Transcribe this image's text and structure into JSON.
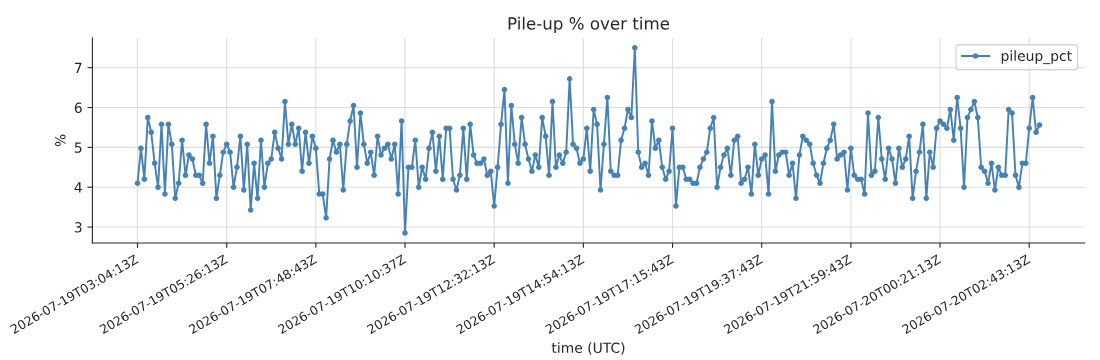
{
  "chart_data": {
    "type": "line",
    "title": "Pile-up % over time",
    "xlabel": "time (UTC)",
    "ylabel": "%",
    "categories": [
      "2026-07-19T03:04:13Z",
      null,
      null,
      null,
      null,
      null,
      null,
      null,
      null,
      null,
      null,
      null,
      null,
      null,
      null,
      null,
      null,
      null,
      null,
      null,
      null,
      null,
      null,
      null,
      null,
      null,
      "2026-07-19T05:26:13Z",
      null,
      null,
      null,
      null,
      null,
      null,
      null,
      null,
      null,
      null,
      null,
      null,
      null,
      null,
      null,
      null,
      null,
      null,
      null,
      null,
      null,
      null,
      null,
      null,
      null,
      "2026-07-19T07:48:43Z",
      null,
      null,
      null,
      null,
      null,
      null,
      null,
      null,
      null,
      null,
      null,
      null,
      null,
      null,
      null,
      null,
      null,
      null,
      null,
      null,
      null,
      null,
      null,
      null,
      null,
      "2026-07-19T10:10:37Z",
      null,
      null,
      null,
      null,
      null,
      null,
      null,
      null,
      null,
      null,
      null,
      null,
      null,
      null,
      null,
      null,
      null,
      null,
      null,
      null,
      null,
      null,
      null,
      null,
      null,
      "2026-07-19T12:32:13Z",
      null,
      null,
      null,
      null,
      null,
      null,
      null,
      null,
      null,
      null,
      null,
      null,
      null,
      null,
      null,
      null,
      null,
      null,
      null,
      null,
      null,
      null,
      null,
      null,
      null,
      "2026-07-19T14:54:13Z",
      null,
      null,
      null,
      null,
      null,
      null,
      null,
      null,
      null,
      null,
      null,
      null,
      null,
      null,
      null,
      null,
      null,
      null,
      null,
      null,
      null,
      null,
      null,
      null,
      null,
      "2026-07-19T17:15:43Z",
      null,
      null,
      null,
      null,
      null,
      null,
      null,
      null,
      null,
      null,
      null,
      null,
      null,
      null,
      null,
      null,
      null,
      null,
      null,
      null,
      null,
      null,
      null,
      null,
      null,
      "2026-07-19T19:37:43Z",
      null,
      null,
      null,
      null,
      null,
      null,
      null,
      null,
      null,
      null,
      null,
      null,
      null,
      null,
      null,
      null,
      null,
      null,
      null,
      null,
      null,
      null,
      null,
      null,
      null,
      "2026-07-19T21:59:43Z",
      null,
      null,
      null,
      null,
      null,
      null,
      null,
      null,
      null,
      null,
      null,
      null,
      null,
      null,
      null,
      null,
      null,
      null,
      null,
      null,
      null,
      null,
      null,
      null,
      null,
      "2026-07-20T00:21:13Z",
      null,
      null,
      null,
      null,
      null,
      null,
      null,
      null,
      null,
      null,
      null,
      null,
      null,
      null,
      null,
      null,
      null,
      null,
      null,
      null,
      null,
      null,
      null,
      null,
      null,
      "2026-07-20T02:43:13Z",
      null,
      null,
      null
    ],
    "series": [
      {
        "name": "pileup_pct",
        "color": "#4682b4",
        "values": [
          4.1,
          4.98,
          4.2,
          5.75,
          5.38,
          4.6,
          4.0,
          5.58,
          3.83,
          5.58,
          5.08,
          3.72,
          4.1,
          5.18,
          4.3,
          4.81,
          4.71,
          4.3,
          4.3,
          4.1,
          5.58,
          4.6,
          5.28,
          3.72,
          4.3,
          4.88,
          5.08,
          4.88,
          4.0,
          4.5,
          5.28,
          3.93,
          5.08,
          3.43,
          4.6,
          3.72,
          5.18,
          4.0,
          4.6,
          4.71,
          5.38,
          4.98,
          4.71,
          6.15,
          5.08,
          5.58,
          5.08,
          5.48,
          4.4,
          5.38,
          4.6,
          5.28,
          4.98,
          3.83,
          3.83,
          3.23,
          4.71,
          5.18,
          4.88,
          5.08,
          3.93,
          5.08,
          5.66,
          6.05,
          4.5,
          5.86,
          5.08,
          4.6,
          4.88,
          4.3,
          5.28,
          4.81,
          4.98,
          5.08,
          4.71,
          5.08,
          3.83,
          5.66,
          2.85,
          4.5,
          4.5,
          5.18,
          4.0,
          4.5,
          4.2,
          4.98,
          5.38,
          4.4,
          5.28,
          4.2,
          5.48,
          5.48,
          4.2,
          3.93,
          4.3,
          5.48,
          4.2,
          5.58,
          4.81,
          4.6,
          4.6,
          4.71,
          4.3,
          4.4,
          3.53,
          4.5,
          5.58,
          6.45,
          4.1,
          6.05,
          5.08,
          4.6,
          5.75,
          5.08,
          4.71,
          4.4,
          4.81,
          4.5,
          5.75,
          5.28,
          4.3,
          6.15,
          4.5,
          4.81,
          4.6,
          4.88,
          6.72,
          5.08,
          4.98,
          4.6,
          4.71,
          5.48,
          4.4,
          5.95,
          5.58,
          3.93,
          5.08,
          6.25,
          4.4,
          4.3,
          4.3,
          5.18,
          5.48,
          5.95,
          5.75,
          7.5,
          4.88,
          4.5,
          4.6,
          4.3,
          5.66,
          4.98,
          5.18,
          4.5,
          4.2,
          4.4,
          5.48,
          3.53,
          4.5,
          4.5,
          4.2,
          4.2,
          4.1,
          4.1,
          4.5,
          4.71,
          4.88,
          5.48,
          5.75,
          4.0,
          4.5,
          4.81,
          4.98,
          4.3,
          5.18,
          5.28,
          4.1,
          4.2,
          4.5,
          3.83,
          5.08,
          4.3,
          4.71,
          4.81,
          3.83,
          6.15,
          4.4,
          4.81,
          4.88,
          4.88,
          4.3,
          4.6,
          3.72,
          4.81,
          5.28,
          5.18,
          5.08,
          4.6,
          4.3,
          4.1,
          4.6,
          4.98,
          5.18,
          5.58,
          4.71,
          4.81,
          4.88,
          3.93,
          4.98,
          4.3,
          4.2,
          4.2,
          3.83,
          5.86,
          4.3,
          4.4,
          5.75,
          4.71,
          4.2,
          4.98,
          4.71,
          4.1,
          4.98,
          4.5,
          4.71,
          5.28,
          3.72,
          4.4,
          4.88,
          5.58,
          3.72,
          4.88,
          4.5,
          5.48,
          5.66,
          5.58,
          5.48,
          5.95,
          5.18,
          6.25,
          5.48,
          4.0,
          5.75,
          5.95,
          6.15,
          5.75,
          4.5,
          4.4,
          4.1,
          4.6,
          3.93,
          4.5,
          4.3,
          4.3,
          5.95,
          5.86,
          4.3,
          4.0,
          4.6,
          4.6,
          5.48,
          6.25,
          5.38,
          5.56
        ]
      }
    ],
    "ylim": [
      2.6,
      7.75
    ],
    "yticks": [
      3,
      4,
      5,
      6,
      7
    ],
    "grid": true,
    "legend": "top right",
    "marker": "circle",
    "line_style": "solid"
  }
}
